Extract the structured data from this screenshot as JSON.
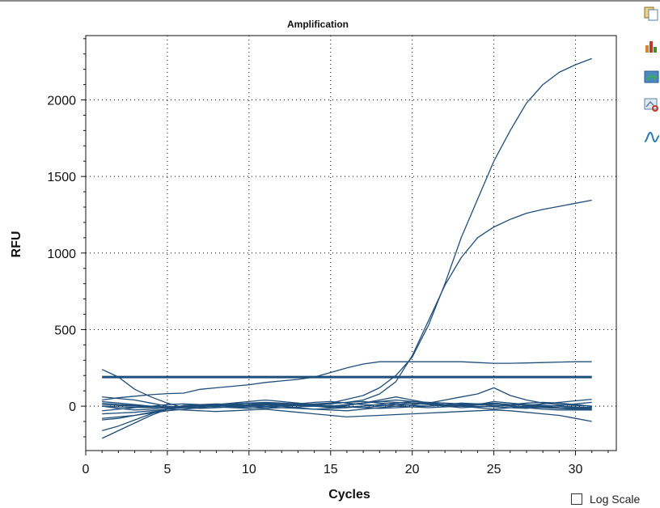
{
  "ui": {
    "log_scale_label": "Log Scale",
    "log_scale_checked": false,
    "toolbar_icons": [
      "copy-icon",
      "chart-settings-icon",
      "export-image-icon",
      "zoom-chart-icon",
      "trace-style-icon"
    ]
  },
  "chart_data": {
    "type": "line",
    "title": "Amplification",
    "xlabel": "Cycles",
    "ylabel": "RFU",
    "xlim": [
      0,
      32.5
    ],
    "ylim": [
      -290,
      2420
    ],
    "xticks": [
      0,
      5,
      10,
      15,
      20,
      25,
      30
    ],
    "yticks": [
      0,
      500,
      1000,
      1500,
      2000
    ],
    "grid": true,
    "line_color": "#1f4e7a",
    "x": [
      1,
      2,
      3,
      4,
      5,
      6,
      7,
      8,
      9,
      10,
      11,
      12,
      13,
      14,
      15,
      16,
      17,
      18,
      19,
      20,
      21,
      22,
      23,
      24,
      25,
      26,
      27,
      28,
      29,
      30,
      31
    ],
    "threshold": 190,
    "series": [
      {
        "values": [
          10,
          5,
          0,
          -5,
          -8,
          -5,
          0,
          5,
          2,
          0,
          8,
          12,
          5,
          10,
          20,
          45,
          70,
          120,
          200,
          320,
          530,
          800,
          1100,
          1350,
          1600,
          1800,
          1980,
          2100,
          2180,
          2230,
          2270
        ]
      },
      {
        "values": [
          0,
          -5,
          -8,
          -10,
          -5,
          0,
          5,
          10,
          5,
          0,
          -5,
          0,
          5,
          10,
          15,
          25,
          40,
          80,
          160,
          330,
          560,
          790,
          970,
          1100,
          1170,
          1220,
          1260,
          1285,
          1305,
          1325,
          1345
        ]
      },
      {
        "values": [
          40,
          55,
          65,
          75,
          82,
          85,
          110,
          120,
          130,
          140,
          155,
          165,
          175,
          190,
          220,
          250,
          275,
          290,
          290,
          290,
          290,
          290,
          290,
          285,
          280,
          280,
          282,
          285,
          288,
          290,
          290
        ]
      },
      {
        "values": [
          240,
          190,
          110,
          60,
          20,
          -10,
          -5,
          0,
          5,
          8,
          10,
          5,
          5,
          0,
          -5,
          10,
          20,
          30,
          25,
          20,
          15,
          10,
          5,
          10,
          30,
          20,
          10,
          5,
          0,
          -10,
          -15
        ]
      },
      {
        "values": [
          -210,
          -160,
          -110,
          -60,
          -20,
          5,
          10,
          15,
          10,
          5,
          0,
          5,
          10,
          15,
          20,
          25,
          30,
          20,
          10,
          5,
          0,
          10,
          20,
          15,
          5,
          0,
          -10,
          -20,
          -25,
          -25,
          -25
        ]
      },
      {
        "values": [
          -160,
          -130,
          -90,
          -50,
          -15,
          0,
          5,
          10,
          20,
          30,
          40,
          30,
          20,
          10,
          0,
          5,
          20,
          40,
          60,
          40,
          20,
          5,
          0,
          -5,
          0,
          5,
          10,
          5,
          0,
          -5,
          -10
        ]
      },
      {
        "values": [
          -90,
          -80,
          -60,
          -40,
          -20,
          -10,
          0,
          5,
          10,
          20,
          15,
          10,
          5,
          0,
          -10,
          -5,
          0,
          10,
          20,
          30,
          25,
          20,
          15,
          10,
          5,
          0,
          -5,
          -10,
          -15,
          -20,
          -25
        ]
      },
      {
        "values": [
          60,
          50,
          40,
          20,
          0,
          -10,
          -15,
          -10,
          -5,
          0,
          -5,
          -10,
          -15,
          -20,
          -25,
          -30,
          -20,
          -10,
          0,
          10,
          20,
          40,
          60,
          80,
          120,
          70,
          40,
          20,
          10,
          5,
          0
        ]
      },
      {
        "values": [
          -50,
          -45,
          -40,
          -30,
          -20,
          -25,
          -30,
          -35,
          -30,
          -25,
          -20,
          -30,
          -40,
          -50,
          -60,
          -70,
          -65,
          -60,
          -55,
          -50,
          -45,
          -40,
          -35,
          -30,
          -25,
          -30,
          -40,
          -50,
          -60,
          -80,
          -100
        ]
      },
      {
        "values": [
          -80,
          -70,
          -60,
          -45,
          -30,
          -20,
          -10,
          0,
          10,
          20,
          25,
          20,
          15,
          10,
          0,
          -5,
          -10,
          -15,
          -10,
          -5,
          0,
          5,
          10,
          15,
          20,
          10,
          5,
          15,
          25,
          35,
          45
        ]
      },
      {
        "values": [
          30,
          20,
          10,
          0,
          -10,
          -5,
          0,
          5,
          -5,
          -10,
          -15,
          -10,
          -5,
          0,
          5,
          -5,
          -10,
          0,
          10,
          20,
          10,
          0,
          -10,
          -5,
          0,
          10,
          20,
          25,
          20,
          10,
          0
        ]
      },
      {
        "values": [
          20,
          10,
          5,
          0,
          -5,
          0,
          5,
          10,
          15,
          20,
          10,
          0,
          -10,
          -20,
          -15,
          -10,
          0,
          10,
          20,
          30,
          20,
          10,
          5,
          0,
          -5,
          -10,
          -15,
          -5,
          5,
          15,
          25
        ]
      },
      {
        "values": [
          0,
          -15,
          -25,
          -20,
          -10,
          -5,
          0,
          -5,
          -10,
          -15,
          -5,
          5,
          15,
          25,
          30,
          20,
          10,
          5,
          0,
          -5,
          -10,
          -5,
          0,
          10,
          15,
          10,
          5,
          0,
          -10,
          -15,
          -20
        ]
      },
      {
        "values": [
          -30,
          -20,
          -10,
          0,
          10,
          15,
          10,
          5,
          0,
          10,
          20,
          15,
          10,
          5,
          0,
          10,
          20,
          30,
          40,
          30,
          20,
          10,
          0,
          -10,
          -20,
          -10,
          0,
          -5,
          -10,
          -15,
          -5
        ]
      }
    ]
  }
}
